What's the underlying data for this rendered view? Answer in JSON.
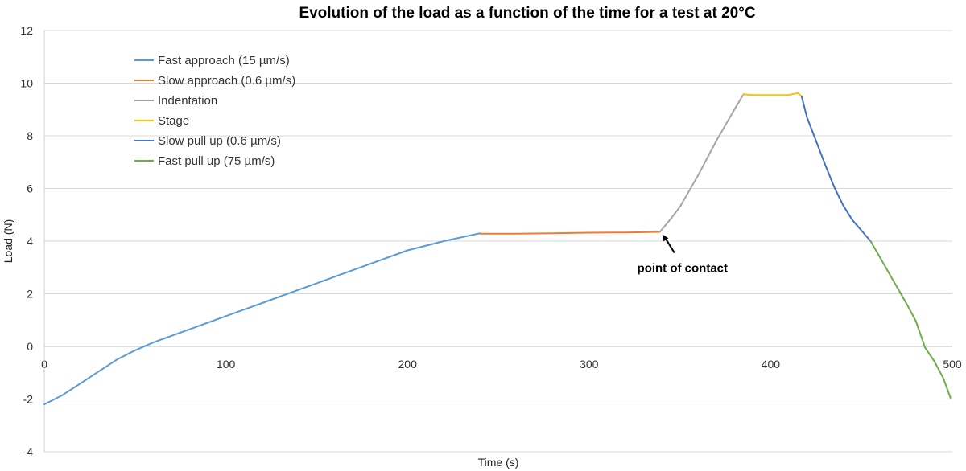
{
  "chart_data": {
    "type": "line",
    "title": "Evolution of the load as a function of the time for a test at 20°C",
    "xlabel": "Time (s)",
    "ylabel": "Load (N)",
    "xlim": [
      0,
      500
    ],
    "ylim": [
      -4,
      12
    ],
    "xticks": [
      0,
      100,
      200,
      300,
      400,
      500
    ],
    "yticks": [
      -4,
      -2,
      0,
      2,
      4,
      6,
      8,
      10,
      12
    ],
    "grid": "horizontal",
    "legend_position": "top-left",
    "series": [
      {
        "name": "Fast approach (15 µm/s)",
        "color": "#5B9BD5",
        "x": [
          0,
          10,
          20,
          30,
          40,
          50,
          60,
          80,
          100,
          120,
          140,
          160,
          180,
          200,
          220,
          240
        ],
        "y": [
          -2.2,
          -1.85,
          -1.4,
          -0.95,
          -0.5,
          -0.15,
          0.15,
          0.65,
          1.15,
          1.65,
          2.15,
          2.65,
          3.15,
          3.65,
          4.0,
          4.3
        ]
      },
      {
        "name": "Slow approach (0.6 µm/s)",
        "color": "#ED7D31",
        "x": [
          240,
          260,
          280,
          300,
          320,
          339
        ],
        "y": [
          4.28,
          4.28,
          4.3,
          4.32,
          4.33,
          4.35
        ]
      },
      {
        "name": "Indentation",
        "color": "#A5A5A5",
        "x": [
          339,
          345,
          350,
          360,
          370,
          380,
          385
        ],
        "y": [
          4.35,
          4.85,
          5.3,
          6.5,
          7.8,
          9.0,
          9.58
        ]
      },
      {
        "name": "Stage",
        "color": "#FFC000",
        "x": [
          385,
          390,
          400,
          410,
          413,
          415,
          417
        ],
        "y": [
          9.58,
          9.55,
          9.55,
          9.55,
          9.6,
          9.62,
          9.5
        ]
      },
      {
        "name": "Slow pull up (0.6 µm/s)",
        "color": "#4472C4",
        "x": [
          417,
          420,
          425,
          430,
          435,
          440,
          445,
          450,
          455
        ],
        "y": [
          9.5,
          8.7,
          7.8,
          6.9,
          6.05,
          5.35,
          4.8,
          4.4,
          4.0
        ]
      },
      {
        "name": "Fast pull up (75 µm/s)",
        "color": "#70AD47",
        "x": [
          455,
          460,
          465,
          470,
          475,
          480,
          485,
          490,
          495,
          499
        ],
        "y": [
          4.0,
          3.4,
          2.8,
          2.2,
          1.6,
          0.95,
          -0.05,
          -0.55,
          -1.2,
          -1.95
        ]
      }
    ],
    "annotations": [
      {
        "text": "point of contact",
        "x": 339,
        "y": 4.35
      }
    ]
  }
}
